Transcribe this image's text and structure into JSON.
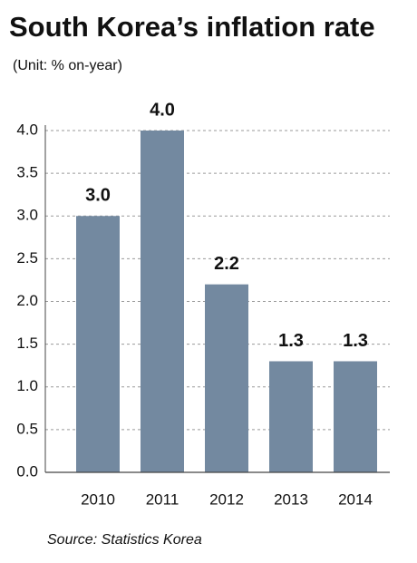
{
  "chart_data": {
    "type": "bar",
    "title": "South Korea’s inflation rate",
    "subtitle": "(Unit: % on-year)",
    "source": "Source: Statistics Korea",
    "categories": [
      "2010",
      "2011",
      "2012",
      "2013",
      "2014"
    ],
    "values": [
      3.0,
      4.0,
      2.2,
      1.3,
      1.3
    ],
    "value_labels": [
      "3.0",
      "4.0",
      "2.2",
      "1.3",
      "1.3"
    ],
    "color": "#7389a0",
    "ylim": [
      0,
      4.0
    ],
    "yticks": [
      {
        "value": 0,
        "label": "0.0"
      },
      0.5,
      {
        "value": 1,
        "label": "1.0"
      },
      1.5,
      {
        "value": 2,
        "label": "2.0"
      },
      2.5,
      {
        "value": 3,
        "label": "3.0"
      },
      3.5,
      {
        "value": 4,
        "label": "4.0"
      }
    ],
    "grid": true
  }
}
